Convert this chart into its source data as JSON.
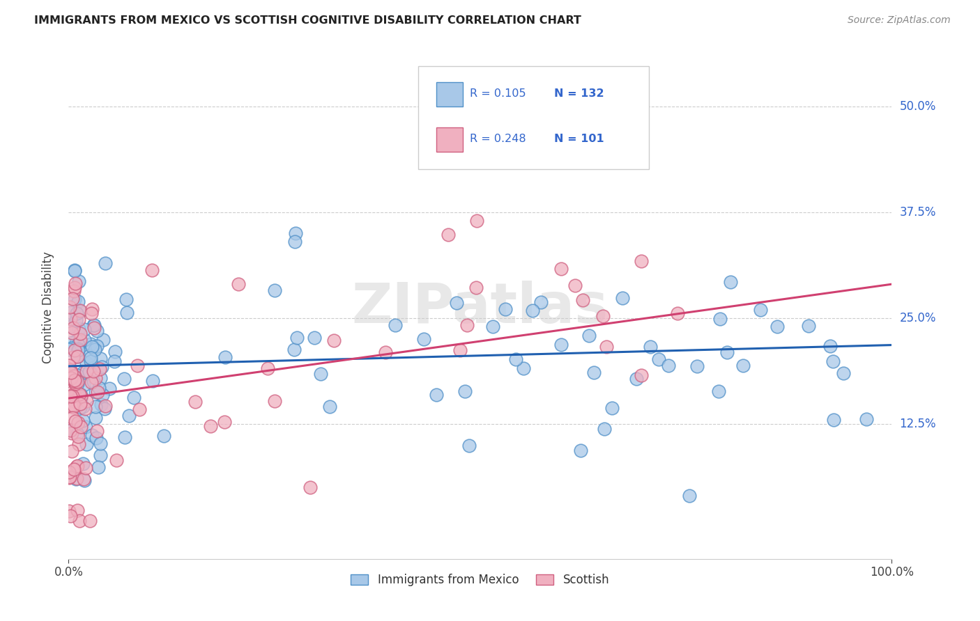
{
  "title": "IMMIGRANTS FROM MEXICO VS SCOTTISH COGNITIVE DISABILITY CORRELATION CHART",
  "source": "Source: ZipAtlas.com",
  "ylabel": "Cognitive Disability",
  "yticks": [
    "12.5%",
    "25.0%",
    "37.5%",
    "50.0%"
  ],
  "ytick_vals": [
    0.125,
    0.25,
    0.375,
    0.5
  ],
  "xlim": [
    0.0,
    1.0
  ],
  "ylim": [
    -0.035,
    0.56
  ],
  "blue_color": "#a8c8e8",
  "blue_edge_color": "#5090c8",
  "blue_line_color": "#2060b0",
  "pink_color": "#f0b0c0",
  "pink_edge_color": "#d06080",
  "pink_line_color": "#d04070",
  "legend_text_color": "#3366cc",
  "legend_r_blue": "R = 0.105",
  "legend_n_blue": "N = 132",
  "legend_r_pink": "R = 0.248",
  "legend_n_pink": "N = 101",
  "legend_label_blue": "Immigrants from Mexico",
  "legend_label_pink": "Scottish",
  "watermark": "ZIPatlas",
  "blue_trend_y0": 0.193,
  "blue_trend_y1": 0.218,
  "pink_trend_y0": 0.155,
  "pink_trend_y1": 0.29,
  "grid_color": "#cccccc",
  "axis_color": "#cccccc",
  "title_color": "#222222",
  "source_color": "#888888",
  "bg_color": "#ffffff"
}
